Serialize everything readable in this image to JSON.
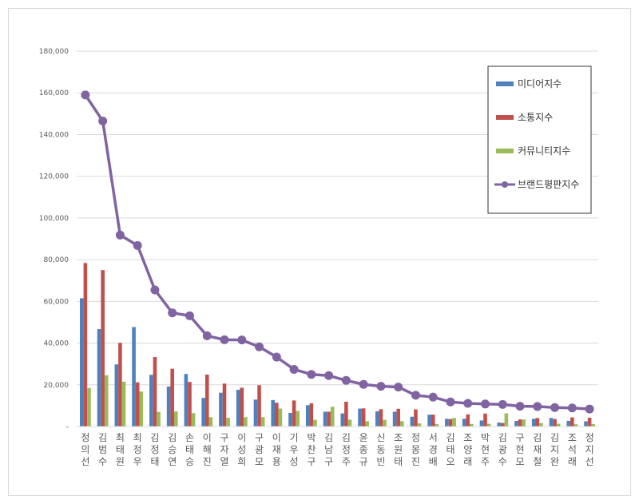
{
  "chart_data": {
    "type": "bar",
    "categories": [
      "정의선",
      "김범수",
      "최태원",
      "최정우",
      "김정태",
      "김승연",
      "손태승",
      "이해진",
      "구자열",
      "이성희",
      "구광모",
      "이재용",
      "기우성",
      "박찬구",
      "김남구",
      "김정주",
      "윤종규",
      "신동빈",
      "조원태",
      "정몽진",
      "서경배",
      "김태오",
      "조양래",
      "박현주",
      "김광수",
      "구현모",
      "김재철",
      "김지완",
      "조석래",
      "정지선"
    ],
    "series": [
      {
        "name": "미디어지수",
        "type": "bar",
        "color": "#4f81bd",
        "values": [
          61500,
          46700,
          29800,
          47700,
          24800,
          19200,
          25200,
          13700,
          16200,
          17600,
          12900,
          12700,
          6500,
          10200,
          7100,
          6300,
          8600,
          7300,
          7100,
          4700,
          5700,
          3700,
          3700,
          2900,
          1900,
          2700,
          3700,
          4100,
          2700,
          2500
        ]
      },
      {
        "name": "소통지수",
        "type": "bar",
        "color": "#c0504d",
        "values": [
          78400,
          75000,
          40100,
          21200,
          33300,
          27700,
          21400,
          24900,
          20600,
          18600,
          19800,
          11400,
          12500,
          11100,
          7100,
          11900,
          8700,
          8300,
          8500,
          8200,
          5700,
          3600,
          5800,
          6200,
          1700,
          3400,
          4100,
          3600,
          4400,
          4200
        ]
      },
      {
        "name": "커뮤니티지수",
        "type": "bar",
        "color": "#9bbb59",
        "values": [
          18400,
          24600,
          21500,
          16800,
          7000,
          7200,
          6400,
          4500,
          4200,
          4500,
          4500,
          8600,
          7500,
          3200,
          9500,
          3300,
          2500,
          3200,
          2600,
          1500,
          1200,
          4100,
          1200,
          1300,
          6300,
          3400,
          1700,
          1300,
          1100,
          1200
        ]
      },
      {
        "name": "브랜드평판지수",
        "type": "line",
        "color": "#8064a2",
        "values": [
          159000,
          146500,
          91800,
          86800,
          65500,
          54500,
          53100,
          43500,
          41600,
          41500,
          38200,
          33300,
          27400,
          25000,
          24400,
          22100,
          20200,
          19300,
          18900,
          15000,
          14100,
          11800,
          11100,
          10800,
          10600,
          9700,
          9600,
          9100,
          8900,
          8400
        ]
      }
    ],
    "ylim": [
      0,
      180000
    ],
    "yticks": [
      "-",
      "20,000",
      "40,000",
      "60,000",
      "80,000",
      "100,000",
      "120,000",
      "140,000",
      "160,000",
      "180,000"
    ],
    "grid": true,
    "legend": "top-right"
  }
}
